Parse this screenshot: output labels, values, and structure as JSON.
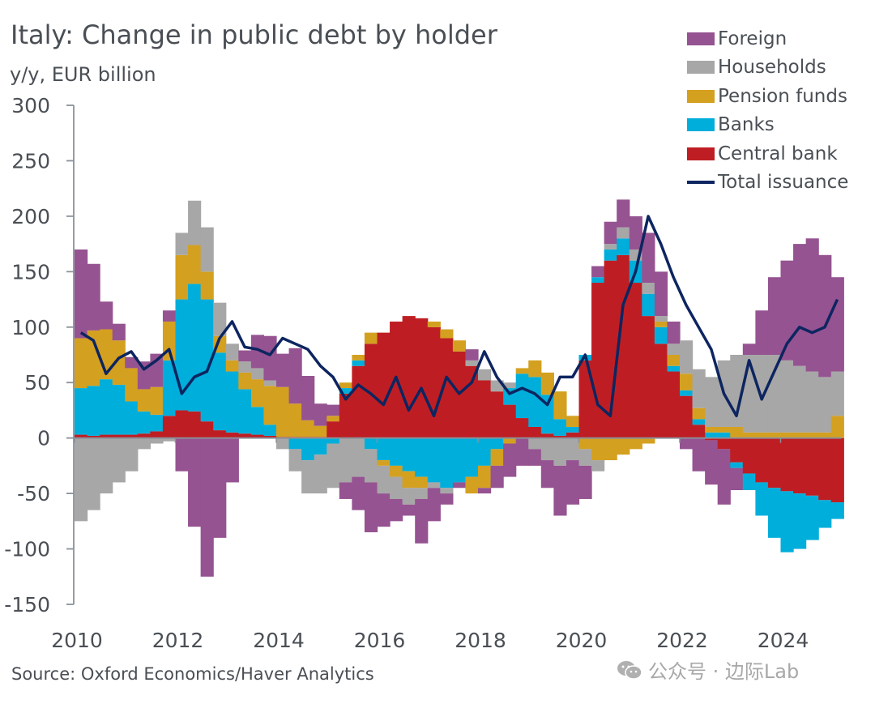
{
  "title": "Italy: Change in public debt by holder",
  "unit_label": "y/y, EUR billion",
  "source": "Source: Oxford Economics/Haver Analytics",
  "watermark": "公众号 · 边际Lab",
  "chart_data": {
    "type": "bar",
    "stacked": true,
    "title": "Italy: Change in public debt by holder",
    "ylabel": "y/y, EUR billion",
    "xlabel": "",
    "ylim": [
      -150,
      300
    ],
    "xlim": [
      2010,
      2025.2
    ],
    "yticks": [
      "300",
      "250",
      "200",
      "150",
      "100",
      "50",
      "0",
      "-50",
      "-100",
      "-150"
    ],
    "ytick_values": [
      300,
      250,
      200,
      150,
      100,
      50,
      0,
      -50,
      -100,
      -150
    ],
    "xticks": [
      "2010",
      "2012",
      "2014",
      "2016",
      "2018",
      "2020",
      "2022",
      "2024"
    ],
    "xtick_values": [
      2010,
      2012,
      2014,
      2016,
      2018,
      2020,
      2022,
      2024
    ],
    "legend_position": "top-right",
    "x": [
      2010.0,
      2010.25,
      2010.5,
      2010.75,
      2011.0,
      2011.25,
      2011.5,
      2011.75,
      2012.0,
      2012.25,
      2012.5,
      2012.75,
      2013.0,
      2013.25,
      2013.5,
      2013.75,
      2014.0,
      2014.25,
      2014.5,
      2014.75,
      2015.0,
      2015.25,
      2015.5,
      2015.75,
      2016.0,
      2016.25,
      2016.5,
      2016.75,
      2017.0,
      2017.25,
      2017.5,
      2017.75,
      2018.0,
      2018.25,
      2018.5,
      2018.75,
      2019.0,
      2019.25,
      2019.5,
      2019.75,
      2020.0,
      2020.25,
      2020.5,
      2020.75,
      2021.0,
      2021.25,
      2021.5,
      2021.75,
      2022.0,
      2022.25,
      2022.5,
      2022.75,
      2023.0,
      2023.25,
      2023.5,
      2023.75,
      2024.0,
      2024.25,
      2024.5,
      2024.75,
      2025.0
    ],
    "series": [
      {
        "name": "Central bank",
        "color": "#be1e23",
        "values": [
          3,
          2,
          3,
          3,
          3,
          4,
          6,
          20,
          25,
          24,
          15,
          7,
          5,
          4,
          3,
          2,
          1,
          1,
          1,
          1,
          15,
          40,
          65,
          85,
          95,
          105,
          110,
          108,
          100,
          90,
          78,
          65,
          52,
          42,
          30,
          18,
          10,
          4,
          2,
          5,
          70,
          140,
          160,
          165,
          140,
          110,
          85,
          60,
          38,
          12,
          -2,
          -10,
          -22,
          -32,
          -40,
          -45,
          -48,
          -50,
          -52,
          -56,
          -58
        ]
      },
      {
        "name": "Banks",
        "color": "#00aedb",
        "values": [
          42,
          45,
          50,
          45,
          30,
          20,
          15,
          50,
          100,
          115,
          110,
          70,
          55,
          40,
          25,
          10,
          0,
          -10,
          -20,
          -15,
          -5,
          5,
          5,
          -10,
          -20,
          -25,
          -30,
          -35,
          -40,
          -45,
          -40,
          -35,
          -25,
          -10,
          15,
          40,
          45,
          35,
          15,
          5,
          5,
          5,
          10,
          15,
          20,
          20,
          15,
          5,
          5,
          5,
          5,
          5,
          -5,
          -15,
          -30,
          -45,
          -55,
          -50,
          -40,
          -25,
          -15
        ]
      },
      {
        "name": "Pension funds",
        "color": "#d4a020",
        "values": [
          45,
          50,
          45,
          40,
          30,
          20,
          25,
          35,
          40,
          35,
          25,
          15,
          10,
          15,
          25,
          35,
          45,
          30,
          15,
          10,
          5,
          5,
          5,
          10,
          -5,
          -10,
          -15,
          -10,
          5,
          8,
          10,
          -15,
          -20,
          -15,
          -5,
          5,
          15,
          20,
          25,
          10,
          -10,
          -20,
          -20,
          -15,
          -10,
          -5,
          5,
          10,
          15,
          10,
          5,
          5,
          10,
          5,
          5,
          5,
          5,
          5,
          5,
          5,
          20
        ]
      },
      {
        "name": "Households",
        "color": "#a7a7a7",
        "values": [
          -75,
          -65,
          -50,
          -40,
          -30,
          -10,
          -5,
          -3,
          20,
          40,
          40,
          30,
          15,
          10,
          10,
          5,
          -10,
          -20,
          -30,
          -35,
          -40,
          -40,
          -35,
          -30,
          -25,
          -20,
          -15,
          -10,
          -5,
          -5,
          0,
          5,
          10,
          10,
          5,
          0,
          -10,
          -20,
          -25,
          -20,
          -15,
          -10,
          5,
          10,
          10,
          10,
          5,
          10,
          30,
          35,
          45,
          60,
          65,
          70,
          70,
          70,
          65,
          60,
          55,
          50,
          40
        ]
      },
      {
        "name": "Foreign",
        "color": "#955391",
        "values": [
          80,
          60,
          25,
          15,
          10,
          25,
          30,
          10,
          -30,
          -80,
          -125,
          -90,
          -40,
          10,
          30,
          40,
          30,
          50,
          40,
          20,
          10,
          -15,
          -30,
          -45,
          -30,
          -20,
          -10,
          -40,
          -30,
          -10,
          -5,
          10,
          -5,
          -20,
          -30,
          -25,
          -15,
          -25,
          -45,
          -40,
          -30,
          10,
          20,
          25,
          30,
          45,
          40,
          20,
          -10,
          -30,
          -40,
          -50,
          -20,
          10,
          40,
          70,
          90,
          110,
          120,
          110,
          85
        ]
      },
      {
        "name": "Total issuance",
        "color": "#0d2560",
        "type": "line",
        "values": [
          95,
          88,
          58,
          72,
          78,
          62,
          70,
          80,
          40,
          55,
          60,
          90,
          105,
          82,
          80,
          75,
          90,
          85,
          80,
          65,
          55,
          35,
          48,
          40,
          30,
          55,
          25,
          45,
          20,
          55,
          40,
          50,
          78,
          55,
          40,
          45,
          40,
          30,
          55,
          55,
          75,
          30,
          20,
          120,
          150,
          200,
          175,
          145,
          120,
          100,
          80,
          40,
          20,
          70,
          35,
          60,
          85,
          100,
          95,
          100,
          125
        ]
      }
    ]
  },
  "legend": [
    {
      "label": "Foreign",
      "color": "#955391",
      "kind": "box"
    },
    {
      "label": "Households",
      "color": "#a7a7a7",
      "kind": "box"
    },
    {
      "label": "Pension funds",
      "color": "#d4a020",
      "kind": "box"
    },
    {
      "label": "Banks",
      "color": "#00aedb",
      "kind": "box"
    },
    {
      "label": "Central bank",
      "color": "#be1e23",
      "kind": "box"
    },
    {
      "label": "Total issuance",
      "color": "#0d2560",
      "kind": "line"
    }
  ]
}
